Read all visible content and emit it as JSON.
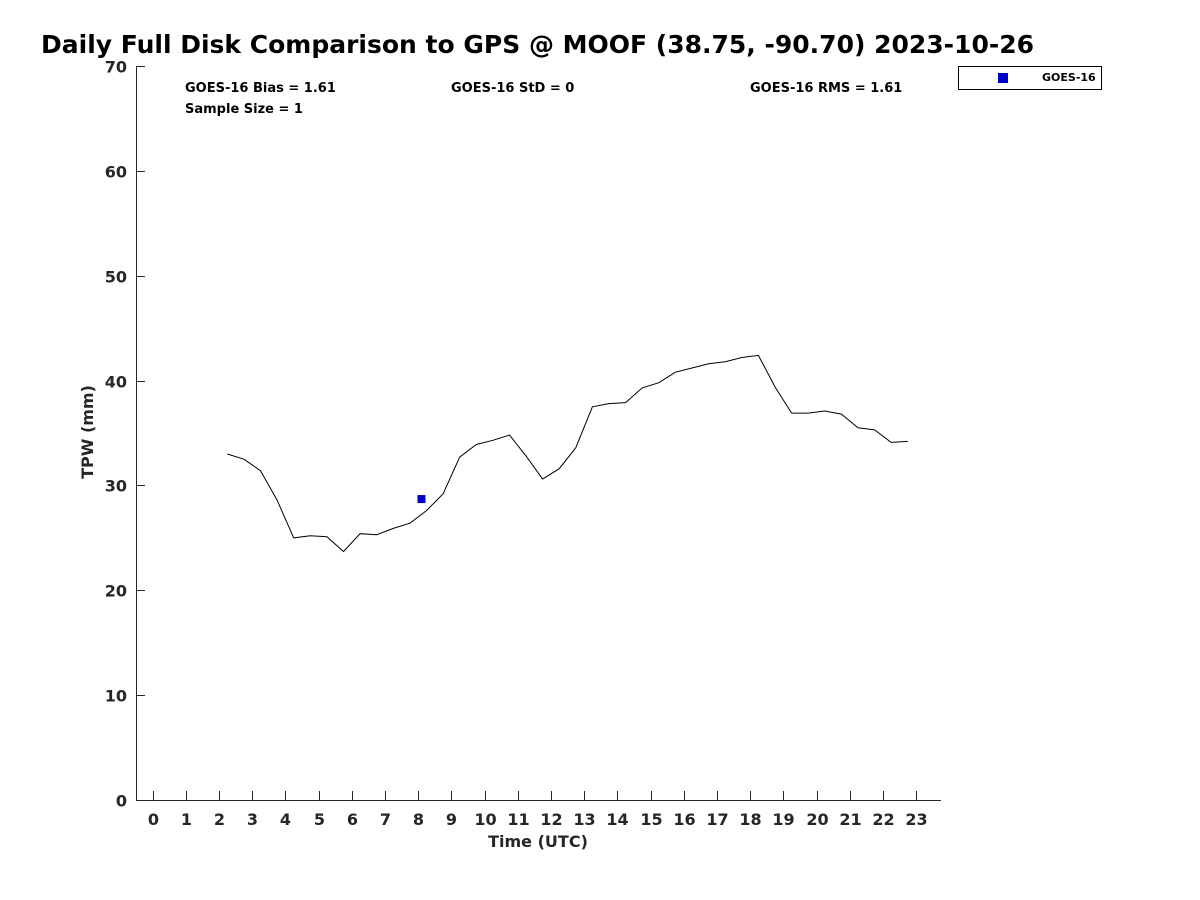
{
  "chart_data": {
    "type": "line",
    "title": "Daily Full Disk Comparison to GPS @ MOOF (38.75, -90.70) 2023-10-26",
    "xlabel": "Time (UTC)",
    "ylabel": "TPW (mm)",
    "xlim": [
      -0.5,
      23.75
    ],
    "ylim": [
      0,
      70
    ],
    "xticks": [
      0,
      1,
      2,
      3,
      4,
      5,
      6,
      7,
      8,
      9,
      10,
      11,
      12,
      13,
      14,
      15,
      16,
      17,
      18,
      19,
      20,
      21,
      22,
      23
    ],
    "yticks": [
      0,
      10,
      20,
      30,
      40,
      50,
      60,
      70
    ],
    "grid": false,
    "legend_position": "top-right-outside",
    "stats": {
      "bias": "GOES-16 Bias = 1.61",
      "std": "GOES-16 StD = 0",
      "rms": "GOES-16 RMS = 1.61",
      "sample_size": "Sample Size = 1"
    },
    "legend": {
      "label": "GOES-16"
    },
    "series": [
      {
        "kind": "line",
        "color": "#000000",
        "x": [
          2.25,
          2.75,
          3.25,
          3.75,
          4.25,
          4.75,
          5.25,
          5.75,
          6.25,
          6.75,
          7.25,
          7.75,
          8.25,
          8.75,
          9.25,
          9.75,
          10.25,
          10.75,
          11.25,
          11.75,
          12.25,
          12.75,
          13.25,
          13.75,
          14.25,
          14.75,
          15.25,
          15.75,
          16.25,
          16.75,
          17.25,
          17.75,
          18.25,
          18.75,
          19.25,
          19.75,
          20.25,
          20.75,
          21.25,
          21.75,
          22.25,
          22.75
        ],
        "y": [
          33.0,
          32.5,
          31.4,
          28.6,
          25.0,
          25.2,
          25.1,
          23.7,
          25.4,
          25.3,
          25.9,
          26.4,
          27.6,
          29.2,
          32.7,
          33.9,
          34.3,
          34.8,
          32.8,
          30.6,
          31.6,
          33.6,
          37.5,
          37.8,
          37.9,
          39.3,
          39.8,
          40.8,
          41.2,
          41.6,
          41.8,
          42.2,
          42.4,
          39.4,
          36.9,
          36.9,
          37.1,
          36.8,
          35.5,
          35.3,
          34.1,
          34.2
        ]
      },
      {
        "kind": "scatter",
        "name": "GOES-16",
        "color": "#0000cc",
        "x": [
          8.1
        ],
        "y": [
          28.7
        ]
      }
    ]
  }
}
